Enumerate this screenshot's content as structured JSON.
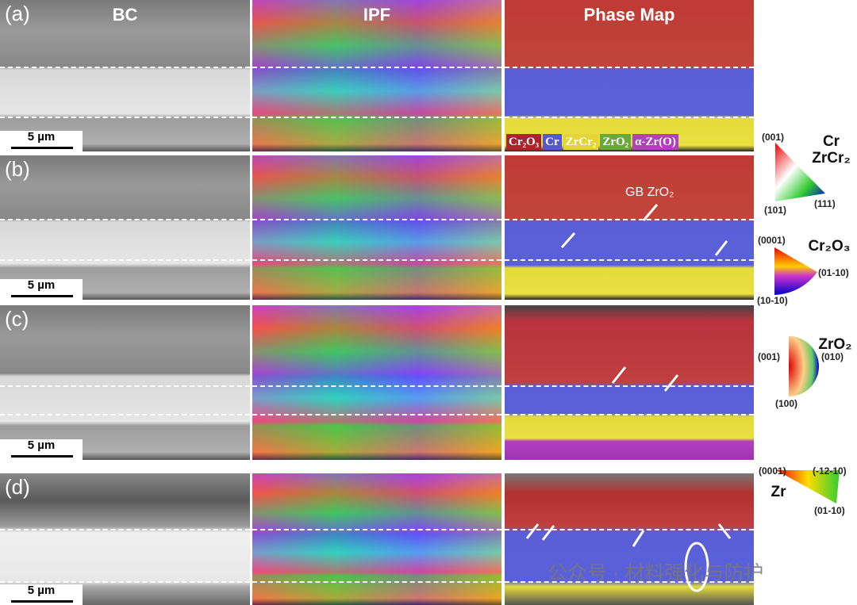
{
  "headers": {
    "bc": "BC",
    "ipf": "IPF",
    "phase": "Phase Map"
  },
  "rows": [
    {
      "label": "(a)"
    },
    {
      "label": "(b)"
    },
    {
      "label": "(c)"
    },
    {
      "label": "(d)"
    }
  ],
  "scale_bar": "5 µm",
  "phase_legend": [
    {
      "label": "Cr₂O₃",
      "color": "#a8252c"
    },
    {
      "label": "Cr",
      "color": "#5558d0"
    },
    {
      "label": "ZrCr₂",
      "color": "#e4d43a"
    },
    {
      "label": "ZrO₂",
      "color": "#6aa83a"
    },
    {
      "label": "α-Zr(O)",
      "color": "#b040c0"
    }
  ],
  "annotation": "GB ZrO₂",
  "ipf_keys": [
    {
      "phase": "Cr\nZrCr₂",
      "poles": [
        "(001)",
        "(101)",
        "(111)"
      ]
    },
    {
      "phase": "Cr₂O₃",
      "poles": [
        "(0001)",
        "(10-10)",
        "(01-10)"
      ]
    },
    {
      "phase": "ZrO₂",
      "poles": [
        "(001)",
        "(100)",
        "(010)"
      ]
    },
    {
      "phase": "Zr",
      "poles": [
        "(0001)",
        "(-12-10)",
        "(01-10)"
      ]
    }
  ],
  "watermark": "公众号 · 材料强化与防护"
}
